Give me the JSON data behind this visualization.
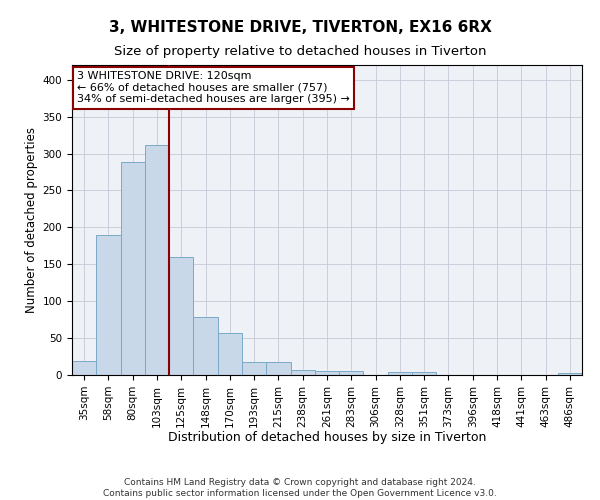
{
  "title_line1": "3, WHITESTONE DRIVE, TIVERTON, EX16 6RX",
  "title_line2": "Size of property relative to detached houses in Tiverton",
  "xlabel": "Distribution of detached houses by size in Tiverton",
  "ylabel": "Number of detached properties",
  "footnote": "Contains HM Land Registry data © Crown copyright and database right 2024.\nContains public sector information licensed under the Open Government Licence v3.0.",
  "bar_labels": [
    "35sqm",
    "58sqm",
    "80sqm",
    "103sqm",
    "125sqm",
    "148sqm",
    "170sqm",
    "193sqm",
    "215sqm",
    "238sqm",
    "261sqm",
    "283sqm",
    "306sqm",
    "328sqm",
    "351sqm",
    "373sqm",
    "396sqm",
    "418sqm",
    "441sqm",
    "463sqm",
    "486sqm"
  ],
  "bar_values": [
    19,
    190,
    289,
    311,
    160,
    78,
    57,
    18,
    18,
    7,
    5,
    5,
    0,
    4,
    4,
    0,
    0,
    0,
    0,
    0,
    3
  ],
  "bar_color": "#c8d8e8",
  "bar_edgecolor": "#7aaac8",
  "vline_x": 3.5,
  "vline_color": "#8b0000",
  "annotation_text": "3 WHITESTONE DRIVE: 120sqm\n← 66% of detached houses are smaller (757)\n34% of semi-detached houses are larger (395) →",
  "annotation_box_color": "white",
  "annotation_box_edgecolor": "#8b0000",
  "ylim": [
    0,
    420
  ],
  "yticks": [
    0,
    50,
    100,
    150,
    200,
    250,
    300,
    350,
    400
  ],
  "grid_color": "#c8c8d8",
  "background_color": "#eef2f7",
  "title1_fontsize": 11,
  "title2_fontsize": 9.5,
  "xlabel_fontsize": 9,
  "ylabel_fontsize": 8.5,
  "tick_fontsize": 7.5,
  "annotation_fontsize": 8,
  "footnote_fontsize": 6.5
}
